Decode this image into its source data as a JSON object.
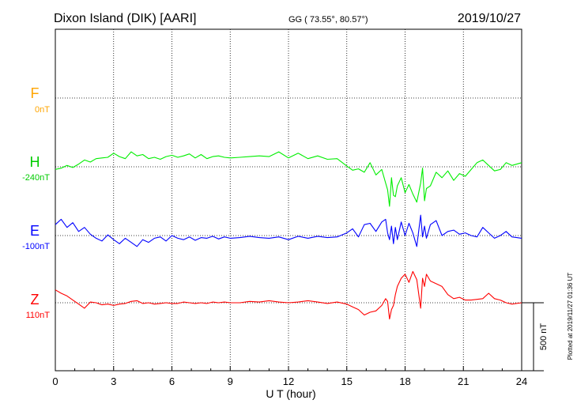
{
  "header": {
    "station": "Dixon Island (DIK)  [AARI]",
    "coords": "GG ( 73.55°,  80.57°)",
    "date": "2019/10/27"
  },
  "side_note": "Plotted at 2019/11/27 01:36 UT",
  "scale_label": "500 nT",
  "colors": {
    "F": "#ffa500",
    "H": "#00ee00",
    "E": "#0000ff",
    "Z": "#ff0000",
    "grid": "#000000"
  },
  "chart_data": {
    "type": "line",
    "xlabel": "U T (hour)",
    "xlim": [
      0,
      24
    ],
    "x_ticks": [
      "0",
      "3",
      "6",
      "9",
      "12",
      "15",
      "18",
      "21",
      "24"
    ],
    "y_unit": "nT",
    "scale_bar_nT": 500,
    "series": [
      {
        "name": "F",
        "offset": "0nT",
        "x": [],
        "y": []
      },
      {
        "name": "H",
        "offset": "-240nT",
        "x": [
          0,
          0.3,
          0.6,
          0.9,
          1.2,
          1.5,
          1.8,
          2.1,
          2.4,
          2.7,
          3.0,
          3.3,
          3.6,
          3.9,
          4.2,
          4.5,
          4.8,
          5.1,
          5.4,
          5.7,
          6.0,
          6.3,
          6.6,
          6.9,
          7.2,
          7.5,
          7.8,
          8.1,
          8.4,
          8.7,
          9.0,
          9.5,
          10,
          10.5,
          11,
          11.5,
          12,
          12.5,
          13,
          13.5,
          14,
          14.5,
          15,
          15.3,
          15.6,
          15.9,
          16.2,
          16.5,
          16.8,
          17.0,
          17.1,
          17.2,
          17.3,
          17.4,
          17.5,
          17.6,
          17.8,
          18.0,
          18.2,
          18.4,
          18.6,
          18.8,
          18.9,
          19.0,
          19.1,
          19.3,
          19.6,
          19.9,
          20.2,
          20.5,
          20.8,
          21.1,
          21.4,
          21.7,
          22.0,
          22.3,
          22.6,
          22.9,
          23.2,
          23.5,
          24
        ],
        "y": [
          -20,
          -10,
          10,
          -5,
          20,
          50,
          35,
          60,
          65,
          70,
          100,
          75,
          60,
          110,
          80,
          90,
          60,
          70,
          55,
          75,
          85,
          70,
          80,
          95,
          65,
          90,
          60,
          75,
          80,
          70,
          65,
          70,
          75,
          80,
          75,
          110,
          65,
          100,
          60,
          80,
          55,
          60,
          5,
          -25,
          -15,
          -40,
          30,
          -60,
          -20,
          -120,
          -170,
          -290,
          -80,
          -210,
          -220,
          -140,
          -80,
          -190,
          -130,
          -200,
          -260,
          -120,
          -10,
          -250,
          -160,
          -140,
          -40,
          -80,
          -30,
          -100,
          -50,
          -70,
          -20,
          30,
          50,
          10,
          -30,
          -20,
          30,
          10,
          30
        ]
      },
      {
        "name": "E",
        "offset": "-100nT",
        "x": [
          0,
          0.3,
          0.6,
          0.9,
          1.2,
          1.5,
          1.8,
          2.1,
          2.4,
          2.7,
          3.0,
          3.3,
          3.6,
          3.9,
          4.2,
          4.5,
          4.8,
          5.1,
          5.4,
          5.7,
          6.0,
          6.3,
          6.6,
          6.9,
          7.2,
          7.5,
          7.8,
          8.1,
          8.4,
          8.7,
          9.0,
          9.5,
          10,
          10.5,
          11,
          11.5,
          12,
          12.5,
          13,
          13.5,
          14,
          14.5,
          15,
          15.3,
          15.6,
          15.9,
          16.2,
          16.5,
          16.8,
          17.0,
          17.1,
          17.2,
          17.3,
          17.4,
          17.5,
          17.6,
          17.8,
          18.0,
          18.2,
          18.4,
          18.6,
          18.8,
          18.9,
          19.0,
          19.1,
          19.3,
          19.6,
          19.9,
          20.2,
          20.5,
          20.8,
          21.1,
          21.4,
          21.7,
          22.0,
          22.3,
          22.6,
          22.9,
          23.2,
          23.5,
          24
        ],
        "y": [
          80,
          120,
          60,
          95,
          30,
          60,
          10,
          -20,
          -40,
          5,
          -30,
          -60,
          -20,
          -50,
          -80,
          -30,
          -50,
          -20,
          -10,
          -40,
          0,
          -20,
          -30,
          -10,
          -35,
          -15,
          -20,
          -5,
          -25,
          -10,
          -20,
          -15,
          -5,
          -15,
          -20,
          -10,
          -30,
          -5,
          -20,
          -5,
          -15,
          -10,
          20,
          50,
          -10,
          80,
          90,
          30,
          100,
          120,
          20,
          -30,
          70,
          -60,
          60,
          -30,
          100,
          0,
          90,
          20,
          -80,
          150,
          -10,
          70,
          -20,
          80,
          110,
          0,
          30,
          40,
          10,
          20,
          0,
          -10,
          60,
          20,
          -20,
          0,
          30,
          -10,
          -20
        ]
      },
      {
        "name": "Z",
        "offset": "110nT",
        "x": [
          0,
          0.3,
          0.6,
          0.9,
          1.2,
          1.5,
          1.8,
          2.1,
          2.4,
          2.7,
          3.0,
          3.3,
          3.6,
          3.9,
          4.2,
          4.5,
          4.8,
          5.1,
          5.4,
          5.7,
          6.0,
          6.3,
          6.6,
          6.9,
          7.2,
          7.5,
          7.8,
          8.1,
          8.4,
          8.7,
          9.0,
          9.5,
          10,
          10.5,
          11,
          11.5,
          12,
          12.5,
          13,
          13.5,
          14,
          14.5,
          15,
          15.3,
          15.6,
          15.9,
          16.2,
          16.5,
          16.8,
          17.0,
          17.1,
          17.2,
          17.3,
          17.4,
          17.5,
          17.6,
          17.8,
          18.0,
          18.2,
          18.4,
          18.6,
          18.8,
          18.9,
          19.0,
          19.1,
          19.3,
          19.6,
          19.9,
          20.2,
          20.5,
          20.8,
          21.1,
          21.4,
          21.7,
          22.0,
          22.3,
          22.6,
          22.9,
          23.2,
          23.5,
          24
        ],
        "y": [
          95,
          70,
          50,
          20,
          -10,
          -40,
          5,
          0,
          -15,
          -10,
          -20,
          -10,
          -5,
          10,
          15,
          -5,
          0,
          -10,
          -5,
          0,
          -5,
          -5,
          5,
          0,
          -5,
          0,
          -5,
          5,
          0,
          5,
          0,
          0,
          10,
          5,
          15,
          5,
          0,
          5,
          15,
          5,
          -5,
          5,
          -10,
          -30,
          -50,
          -90,
          -70,
          -60,
          -20,
          30,
          10,
          -120,
          -50,
          -20,
          60,
          120,
          180,
          210,
          150,
          230,
          170,
          -40,
          180,
          120,
          210,
          160,
          140,
          120,
          60,
          30,
          40,
          20,
          20,
          25,
          30,
          70,
          30,
          20,
          0,
          -10,
          0
        ]
      }
    ]
  }
}
